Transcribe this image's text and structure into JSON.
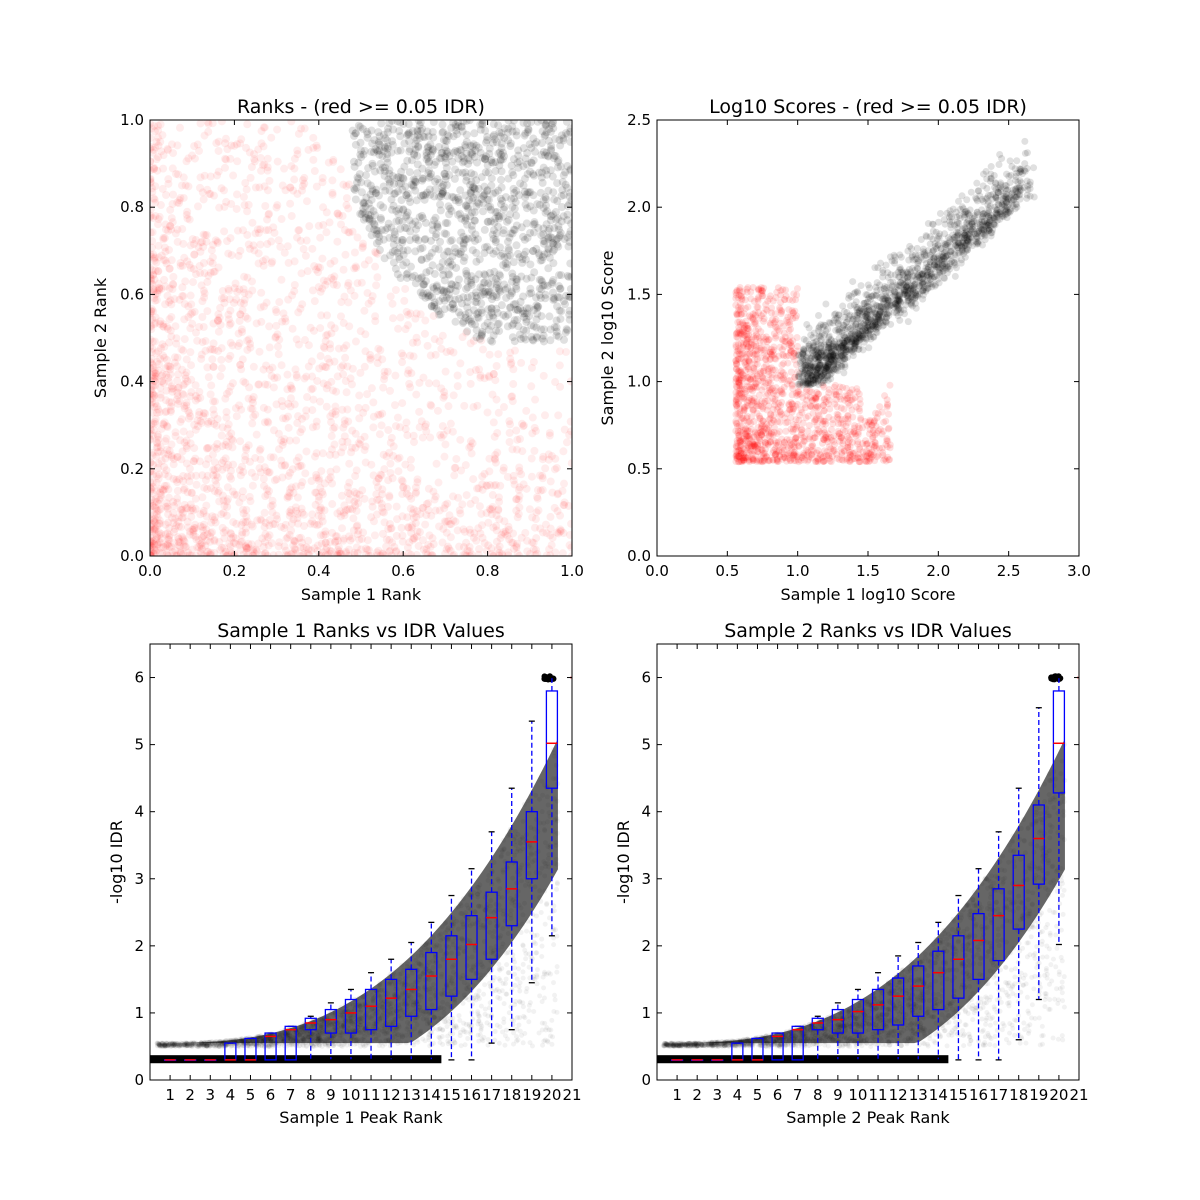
{
  "chart_data": [
    {
      "type": "scatter",
      "title": "Ranks - (red >= 0.05 IDR)",
      "xlabel": "Sample 1 Rank",
      "ylabel": "Sample 2 Rank",
      "xlim": [
        0,
        1
      ],
      "ylim": [
        0,
        1
      ],
      "xticks": [
        "0.0",
        "0.2",
        "0.4",
        "0.6",
        "0.8",
        "1.0"
      ],
      "yticks": [
        "0.0",
        "0.2",
        "0.4",
        "0.6",
        "0.8",
        "1.0"
      ],
      "grid": false,
      "colors": {
        "pass": "#000000",
        "fail": "#ff0000"
      },
      "regions": [
        {
          "color": "#ff0000",
          "description_points": [
            [
              0.05,
              0.05
            ],
            [
              0.1,
              0.3
            ],
            [
              0.2,
              0.5
            ],
            [
              0.3,
              0.7
            ],
            [
              0.4,
              0.8
            ],
            [
              0.6,
              0.3
            ],
            [
              0.8,
              0.15
            ],
            [
              0.95,
              0.05
            ]
          ]
        },
        {
          "color": "#000000",
          "center": [
            0.85,
            0.85
          ],
          "min_x": 0.48,
          "min_y": 0.49
        }
      ]
    },
    {
      "type": "scatter",
      "title": "Log10 Scores - (red >= 0.05 IDR)",
      "xlabel": "Sample 1 log10 Score",
      "ylabel": "Sample 2 log10 Score",
      "xlim": [
        0,
        3
      ],
      "ylim": [
        0,
        2.5
      ],
      "xticks": [
        "0.0",
        "0.5",
        "1.0",
        "1.5",
        "2.0",
        "2.5",
        "3.0"
      ],
      "yticks": [
        "0.0",
        "0.5",
        "1.0",
        "1.5",
        "2.0",
        "2.5"
      ],
      "grid": false,
      "colors": {
        "pass": "#000000",
        "fail": "#ff0000"
      },
      "regions": [
        {
          "color": "#ff0000",
          "x_range": [
            0.56,
            1.8
          ],
          "y_range": [
            0.54,
            1.6
          ]
        },
        {
          "color": "#000000",
          "x_range": [
            1.0,
            2.8
          ],
          "y_range": [
            0.97,
            2.32
          ]
        }
      ]
    },
    {
      "type": "box",
      "title": "Sample 1 Ranks vs IDR Values",
      "xlabel": "Sample 1 Peak Rank",
      "ylabel": "-log10 IDR",
      "xlim": [
        0,
        21
      ],
      "ylim": [
        0,
        6.5
      ],
      "xticks": [
        "1",
        "2",
        "3",
        "4",
        "5",
        "6",
        "7",
        "8",
        "9",
        "10",
        "11",
        "12",
        "13",
        "14",
        "15",
        "16",
        "17",
        "18",
        "19",
        "20",
        "21"
      ],
      "yticks": [
        "0",
        "1",
        "2",
        "3",
        "4",
        "5",
        "6"
      ],
      "grid": false,
      "colors": {
        "box": "#0000ff",
        "median": "#ff0000",
        "points": "#000000"
      },
      "boxes": [
        {
          "x": 1,
          "q1": 0.3,
          "median": 0.3,
          "q3": 0.3,
          "whislo": 0.3,
          "whishi": 0.3
        },
        {
          "x": 2,
          "q1": 0.3,
          "median": 0.3,
          "q3": 0.3,
          "whislo": 0.3,
          "whishi": 0.3
        },
        {
          "x": 3,
          "q1": 0.3,
          "median": 0.3,
          "q3": 0.3,
          "whislo": 0.3,
          "whishi": 0.3
        },
        {
          "x": 4,
          "q1": 0.3,
          "median": 0.3,
          "q3": 0.55,
          "whislo": 0.3,
          "whishi": 0.55
        },
        {
          "x": 5,
          "q1": 0.3,
          "median": 0.3,
          "q3": 0.62,
          "whislo": 0.3,
          "whishi": 0.62
        },
        {
          "x": 6,
          "q1": 0.3,
          "median": 0.65,
          "q3": 0.7,
          "whislo": 0.3,
          "whishi": 0.7
        },
        {
          "x": 7,
          "q1": 0.3,
          "median": 0.75,
          "q3": 0.8,
          "whislo": 0.3,
          "whishi": 0.8
        },
        {
          "x": 8,
          "q1": 0.75,
          "median": 0.85,
          "q3": 0.92,
          "whislo": 0.3,
          "whishi": 0.95
        },
        {
          "x": 9,
          "q1": 0.7,
          "median": 0.9,
          "q3": 1.05,
          "whislo": 0.3,
          "whishi": 1.15
        },
        {
          "x": 10,
          "q1": 0.7,
          "median": 1.0,
          "q3": 1.2,
          "whislo": 0.3,
          "whishi": 1.35
        },
        {
          "x": 11,
          "q1": 0.75,
          "median": 1.1,
          "q3": 1.35,
          "whislo": 0.3,
          "whishi": 1.6
        },
        {
          "x": 12,
          "q1": 0.8,
          "median": 1.22,
          "q3": 1.5,
          "whislo": 0.3,
          "whishi": 1.8
        },
        {
          "x": 13,
          "q1": 0.95,
          "median": 1.35,
          "q3": 1.65,
          "whislo": 0.3,
          "whishi": 2.05
        },
        {
          "x": 14,
          "q1": 1.05,
          "median": 1.55,
          "q3": 1.9,
          "whislo": 0.3,
          "whishi": 2.35
        },
        {
          "x": 15,
          "q1": 1.25,
          "median": 1.8,
          "q3": 2.15,
          "whislo": 0.3,
          "whishi": 2.75
        },
        {
          "x": 16,
          "q1": 1.5,
          "median": 2.02,
          "q3": 2.45,
          "whislo": 0.3,
          "whishi": 3.15
        },
        {
          "x": 17,
          "q1": 1.8,
          "median": 2.42,
          "q3": 2.8,
          "whislo": 0.55,
          "whishi": 3.7
        },
        {
          "x": 18,
          "q1": 2.3,
          "median": 2.85,
          "q3": 3.25,
          "whislo": 0.75,
          "whishi": 4.35
        },
        {
          "x": 19,
          "q1": 3.0,
          "median": 3.55,
          "q3": 4.0,
          "whislo": 1.45,
          "whishi": 5.35
        },
        {
          "x": 20,
          "q1": 4.35,
          "median": 5.02,
          "q3": 5.8,
          "whislo": 2.15,
          "whishi": 6.0
        }
      ]
    },
    {
      "type": "box",
      "title": "Sample 2 Ranks vs IDR Values",
      "xlabel": "Sample 2 Peak Rank",
      "ylabel": "-log10 IDR",
      "xlim": [
        0,
        21
      ],
      "ylim": [
        0,
        6.5
      ],
      "xticks": [
        "1",
        "2",
        "3",
        "4",
        "5",
        "6",
        "7",
        "8",
        "9",
        "10",
        "11",
        "12",
        "13",
        "14",
        "15",
        "16",
        "17",
        "18",
        "19",
        "20",
        "21"
      ],
      "yticks": [
        "0",
        "1",
        "2",
        "3",
        "4",
        "5",
        "6"
      ],
      "grid": false,
      "colors": {
        "box": "#0000ff",
        "median": "#ff0000",
        "points": "#000000"
      },
      "boxes": [
        {
          "x": 1,
          "q1": 0.3,
          "median": 0.3,
          "q3": 0.3,
          "whislo": 0.3,
          "whishi": 0.3
        },
        {
          "x": 2,
          "q1": 0.3,
          "median": 0.3,
          "q3": 0.3,
          "whislo": 0.3,
          "whishi": 0.3
        },
        {
          "x": 3,
          "q1": 0.3,
          "median": 0.3,
          "q3": 0.3,
          "whislo": 0.3,
          "whishi": 0.3
        },
        {
          "x": 4,
          "q1": 0.3,
          "median": 0.3,
          "q3": 0.55,
          "whislo": 0.3,
          "whishi": 0.55
        },
        {
          "x": 5,
          "q1": 0.3,
          "median": 0.3,
          "q3": 0.62,
          "whislo": 0.3,
          "whishi": 0.62
        },
        {
          "x": 6,
          "q1": 0.3,
          "median": 0.65,
          "q3": 0.7,
          "whislo": 0.3,
          "whishi": 0.7
        },
        {
          "x": 7,
          "q1": 0.3,
          "median": 0.75,
          "q3": 0.8,
          "whislo": 0.3,
          "whishi": 0.8
        },
        {
          "x": 8,
          "q1": 0.75,
          "median": 0.85,
          "q3": 0.92,
          "whislo": 0.3,
          "whishi": 0.95
        },
        {
          "x": 9,
          "q1": 0.7,
          "median": 0.9,
          "q3": 1.05,
          "whislo": 0.3,
          "whishi": 1.15
        },
        {
          "x": 10,
          "q1": 0.7,
          "median": 1.02,
          "q3": 1.2,
          "whislo": 0.3,
          "whishi": 1.35
        },
        {
          "x": 11,
          "q1": 0.75,
          "median": 1.12,
          "q3": 1.35,
          "whislo": 0.3,
          "whishi": 1.6
        },
        {
          "x": 12,
          "q1": 0.82,
          "median": 1.25,
          "q3": 1.52,
          "whislo": 0.3,
          "whishi": 1.85
        },
        {
          "x": 13,
          "q1": 0.95,
          "median": 1.4,
          "q3": 1.7,
          "whislo": 0.3,
          "whishi": 2.05
        },
        {
          "x": 14,
          "q1": 1.05,
          "median": 1.6,
          "q3": 1.92,
          "whislo": 0.3,
          "whishi": 2.35
        },
        {
          "x": 15,
          "q1": 1.22,
          "median": 1.8,
          "q3": 2.15,
          "whislo": 0.3,
          "whishi": 2.75
        },
        {
          "x": 16,
          "q1": 1.5,
          "median": 2.08,
          "q3": 2.48,
          "whislo": 0.3,
          "whishi": 3.15
        },
        {
          "x": 17,
          "q1": 1.78,
          "median": 2.45,
          "q3": 2.85,
          "whislo": 0.3,
          "whishi": 3.7
        },
        {
          "x": 18,
          "q1": 2.25,
          "median": 2.9,
          "q3": 3.35,
          "whislo": 0.6,
          "whishi": 4.35
        },
        {
          "x": 19,
          "q1": 2.92,
          "median": 3.6,
          "q3": 4.1,
          "whislo": 1.2,
          "whishi": 5.55
        },
        {
          "x": 20,
          "q1": 4.28,
          "median": 5.02,
          "q3": 5.8,
          "whislo": 2.02,
          "whishi": 6.0
        }
      ]
    }
  ]
}
